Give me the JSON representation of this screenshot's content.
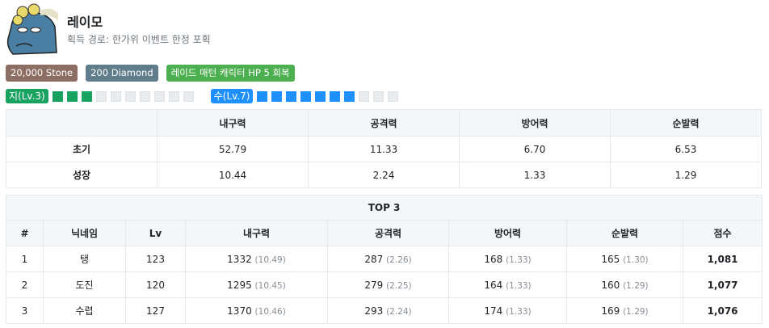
{
  "character": {
    "name": "레이모",
    "source": "획득 경로: 한가위 이벤트 한정 포획",
    "avatar_icon": "blue-dinosaur-avatar"
  },
  "badges": [
    {
      "label": "20,000 Stone",
      "color": "#8d6e63"
    },
    {
      "label": "200 Diamond",
      "color": "#607d8b"
    },
    {
      "label": "레이드 매턴 캐릭터 HP 5 회복",
      "color": "#4caf50"
    }
  ],
  "elements": [
    {
      "label": "지(Lv.3)",
      "level": 3,
      "max": 10,
      "color": "#1aa260"
    },
    {
      "label": "수(Lv.7)",
      "level": 7,
      "max": 10,
      "color": "#1e90ff"
    }
  ],
  "stats_table": {
    "headers": [
      "",
      "내구력",
      "공격력",
      "방어력",
      "순발력"
    ],
    "rows": [
      [
        "초기",
        "52.79",
        "11.33",
        "6.70",
        "6.53"
      ],
      [
        "성장",
        "10.44",
        "2.24",
        "1.33",
        "1.29"
      ]
    ]
  },
  "top3": {
    "title": "TOP 3",
    "headers": [
      "#",
      "닉네임",
      "Lv",
      "내구력",
      "공격력",
      "방어력",
      "순발력",
      "점수"
    ],
    "rows": [
      {
        "rank": "1",
        "name": "탱",
        "lv": "123",
        "hp": "1332",
        "hp_g": "(10.49)",
        "atk": "287",
        "atk_g": "(2.26)",
        "def": "168",
        "def_g": "(1.33)",
        "spd": "165",
        "spd_g": "(1.30)",
        "score": "1,081"
      },
      {
        "rank": "2",
        "name": "도진",
        "lv": "120",
        "hp": "1295",
        "hp_g": "(10.45)",
        "atk": "279",
        "atk_g": "(2.25)",
        "def": "164",
        "def_g": "(1.33)",
        "spd": "160",
        "spd_g": "(1.29)",
        "score": "1,077"
      },
      {
        "rank": "3",
        "name": "수렵",
        "lv": "127",
        "hp": "1370",
        "hp_g": "(10.46)",
        "atk": "293",
        "atk_g": "(2.24)",
        "def": "174",
        "def_g": "(1.33)",
        "spd": "169",
        "spd_g": "(1.29)",
        "score": "1,076"
      }
    ]
  }
}
